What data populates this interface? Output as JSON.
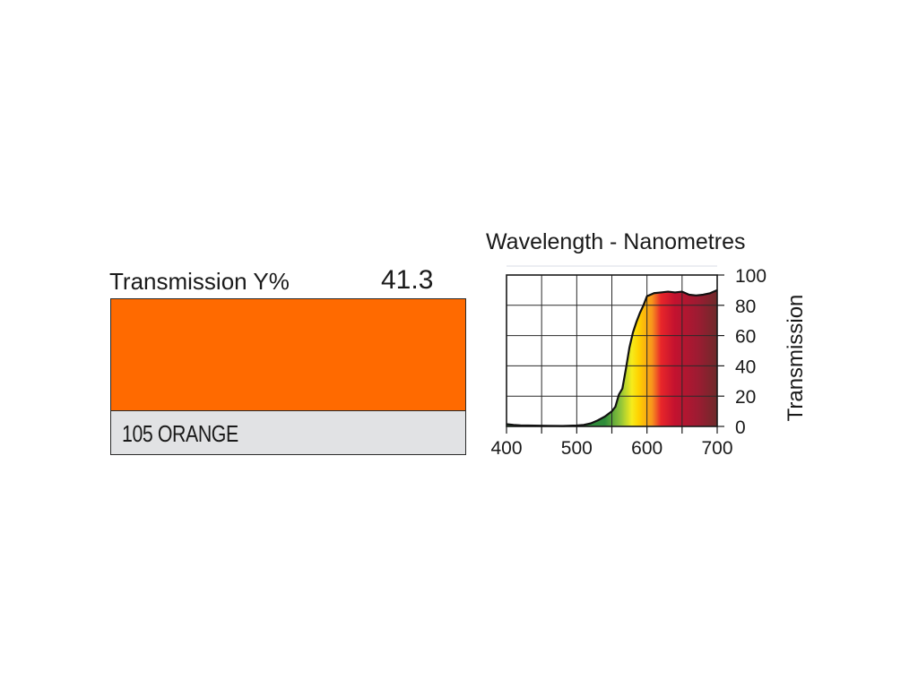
{
  "filter": {
    "transmission_label": "Transmission Y%",
    "transmission_value": "41.3",
    "name": "105 ORANGE",
    "swatch_color": "#ff6a00",
    "name_bar_color": "#e1e2e4"
  },
  "chart_data": {
    "type": "area",
    "title": "Wavelength - Nanometres",
    "xlabel": "",
    "ylabel": "Transmission",
    "xlim": [
      400,
      700
    ],
    "ylim": [
      0,
      100
    ],
    "x_ticks": [
      "400",
      "500",
      "600",
      "700"
    ],
    "y_ticks": [
      "0",
      "20",
      "40",
      "60",
      "80",
      "100"
    ],
    "grid": true,
    "series": [
      {
        "x": [
          400,
          410,
          420,
          440,
          460,
          480,
          500,
          510,
          520,
          530,
          540,
          550,
          555,
          560,
          565,
          570,
          575,
          580,
          585,
          590,
          595,
          600,
          605,
          610,
          620,
          630,
          640,
          650,
          660,
          670,
          680,
          690,
          700
        ],
        "y": [
          1.5,
          1,
          0.7,
          0.5,
          0.4,
          0.3,
          0.6,
          1,
          2,
          4,
          6.5,
          10,
          13,
          21,
          25,
          38,
          52,
          62,
          69,
          75,
          80,
          86,
          87,
          88,
          88.5,
          89,
          88.5,
          89,
          87,
          86.5,
          87,
          88,
          90
        ]
      }
    ],
    "fill_gradient": [
      "#2e8b3a",
      "#8fc43a",
      "#f6ec1c",
      "#ffd200",
      "#f7941d",
      "#e8262a",
      "#c4122f",
      "#9e1b32",
      "#6e2a2a"
    ]
  }
}
